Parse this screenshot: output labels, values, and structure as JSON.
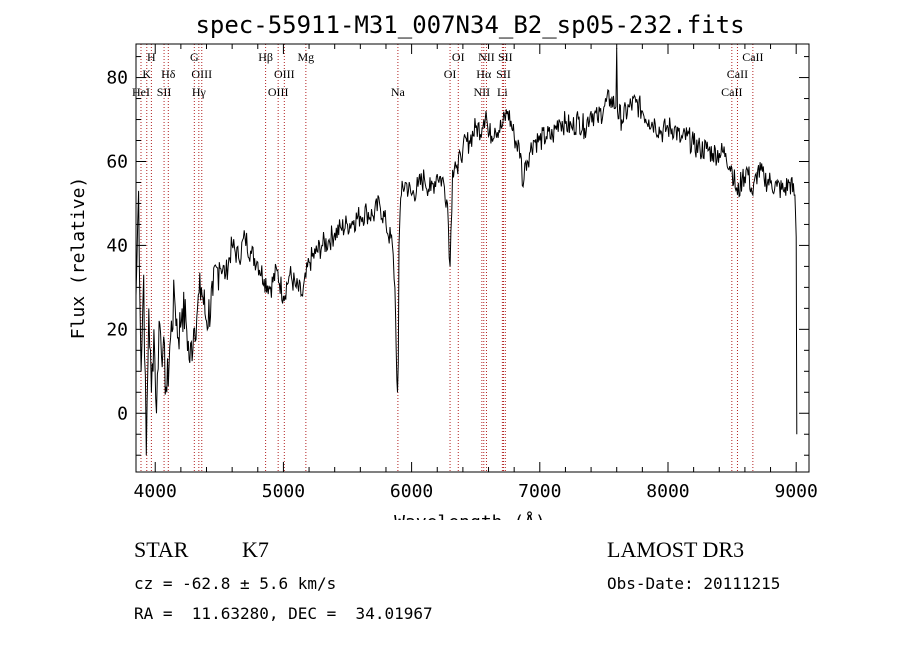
{
  "chart_data": {
    "type": "line",
    "title": "spec-55911-M31_007N34_B2_sp05-232.fits",
    "xlabel": "Wavelength (Å)",
    "ylabel": "Flux (relative)",
    "xlim": [
      3850,
      9100
    ],
    "ylim": [
      -14,
      88
    ],
    "x_ticks": [
      4000,
      5000,
      6000,
      7000,
      8000,
      9000
    ],
    "y_ticks": [
      0,
      20,
      40,
      60,
      80
    ],
    "x_tick_labels": [
      "4000",
      "5000",
      "6000",
      "7000",
      "8000",
      "9000"
    ],
    "y_tick_labels": [
      "0",
      "20",
      "40",
      "60",
      "80"
    ],
    "series": [
      {
        "name": "flux",
        "x": [
          3850,
          3870,
          3890,
          3910,
          3930,
          3950,
          3970,
          3990,
          4010,
          4030,
          4060,
          4090,
          4120,
          4150,
          4180,
          4210,
          4240,
          4270,
          4300,
          4330,
          4360,
          4400,
          4450,
          4500,
          4550,
          4600,
          4650,
          4700,
          4750,
          4800,
          4850,
          4900,
          4950,
          5000,
          5050,
          5100,
          5150,
          5200,
          5250,
          5300,
          5350,
          5400,
          5450,
          5500,
          5550,
          5600,
          5650,
          5700,
          5750,
          5800,
          5850,
          5870,
          5880,
          5890,
          5896,
          5902,
          5910,
          5920,
          5950,
          6000,
          6050,
          6100,
          6150,
          6200,
          6250,
          6280,
          6300,
          6320,
          6340,
          6360,
          6380,
          6400,
          6450,
          6500,
          6550,
          6563,
          6580,
          6600,
          6650,
          6700,
          6750,
          6800,
          6850,
          6870,
          6890,
          6920,
          6950,
          7000,
          7050,
          7100,
          7150,
          7200,
          7250,
          7300,
          7350,
          7400,
          7450,
          7500,
          7550,
          7594,
          7600,
          7606,
          7640,
          7700,
          7750,
          7800,
          7850,
          7900,
          7950,
          8000,
          8050,
          8100,
          8150,
          8200,
          8250,
          8300,
          8350,
          8400,
          8450,
          8500,
          8542,
          8580,
          8620,
          8662,
          8700,
          8750,
          8800,
          8850,
          8900,
          8950,
          8990,
          9000,
          9005
        ],
        "values": [
          28,
          53,
          10,
          33,
          -10,
          25,
          5,
          20,
          0,
          22,
          15,
          5,
          18,
          28,
          18,
          25,
          22,
          12,
          20,
          25,
          30,
          22,
          28,
          36,
          33,
          40,
          37,
          42,
          38,
          36,
          32,
          30,
          34,
          28,
          33,
          30,
          28,
          36,
          38,
          40,
          41,
          43,
          44,
          45,
          46,
          47,
          48,
          47,
          50,
          45,
          40,
          30,
          15,
          5,
          12,
          40,
          48,
          52,
          55,
          52,
          54,
          56,
          53,
          57,
          55,
          50,
          35,
          58,
          60,
          57,
          62,
          63,
          65,
          68,
          68,
          70,
          72,
          66,
          68,
          68,
          72,
          66,
          62,
          54,
          60,
          62,
          65,
          65,
          66,
          66,
          70,
          69,
          68,
          70,
          68,
          72,
          70,
          73,
          75,
          73,
          87,
          72,
          70,
          73,
          74,
          72,
          70,
          69,
          67,
          68,
          68,
          65,
          66,
          64,
          63,
          63,
          62,
          62,
          62,
          58,
          52,
          56,
          58,
          52,
          58,
          56,
          55,
          54,
          53,
          55,
          52,
          42,
          -5
        ]
      }
    ],
    "spectral_lines": [
      {
        "label": "K",
        "wavelength": 3934,
        "row": 2
      },
      {
        "label": "H",
        "wavelength": 3970,
        "row": 1
      },
      {
        "label": "HeI",
        "wavelength": 3889,
        "row": 3
      },
      {
        "label": "SII",
        "wavelength": 4069,
        "row": 3
      },
      {
        "label": "Hδ",
        "wavelength": 4102,
        "row": 2
      },
      {
        "label": "G",
        "wavelength": 4305,
        "row": 1
      },
      {
        "label": "OIII",
        "wavelength": 4363,
        "row": 2
      },
      {
        "label": "Hγ",
        "wavelength": 4340,
        "row": 3
      },
      {
        "label": "Hβ",
        "wavelength": 4861,
        "row": 1
      },
      {
        "label": "OIII",
        "wavelength": 5007,
        "row": 2
      },
      {
        "label": "OIII",
        "wavelength": 4959,
        "row": 3
      },
      {
        "label": "Mg",
        "wavelength": 5175,
        "row": 1
      },
      {
        "label": "Na",
        "wavelength": 5893,
        "row": 3
      },
      {
        "label": "OI",
        "wavelength": 6364,
        "row": 1
      },
      {
        "label": "OI",
        "wavelength": 6300,
        "row": 2
      },
      {
        "label": "NII",
        "wavelength": 6584,
        "row": 1
      },
      {
        "label": "Hα",
        "wavelength": 6563,
        "row": 2
      },
      {
        "label": "NII",
        "wavelength": 6548,
        "row": 3
      },
      {
        "label": "SII",
        "wavelength": 6731,
        "row": 1
      },
      {
        "label": "SII",
        "wavelength": 6717,
        "row": 2
      },
      {
        "label": "Li",
        "wavelength": 6708,
        "row": 3
      },
      {
        "label": "CaII",
        "wavelength": 8662,
        "row": 1
      },
      {
        "label": "CaII",
        "wavelength": 8542,
        "row": 2
      },
      {
        "label": "CaII",
        "wavelength": 8498,
        "row": 3
      }
    ],
    "line_color": "#000000",
    "marker_color": "#b22222"
  },
  "footer": {
    "class": "STAR",
    "subclass": "K7",
    "survey": "LAMOST DR3",
    "cz": "cz = -62.8 ± 5.6 km/s",
    "obs_date": "Obs-Date: 20111215",
    "coords": "RA =  11.63280, DEC =  34.01967"
  }
}
